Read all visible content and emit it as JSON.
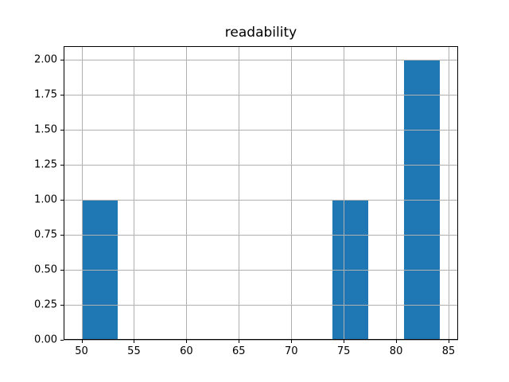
{
  "chart_data": {
    "type": "bar",
    "subtype": "histogram",
    "title": "readability",
    "xlabel": "",
    "ylabel": "",
    "bars": [
      {
        "x_start": 50.0,
        "x_end": 53.42,
        "height": 1
      },
      {
        "x_start": 73.94,
        "x_end": 77.36,
        "height": 1
      },
      {
        "x_start": 80.78,
        "x_end": 84.2,
        "height": 2
      }
    ],
    "bin_counts": [
      1,
      0,
      0,
      0,
      0,
      0,
      0,
      1,
      0,
      2
    ],
    "x_ticks": [
      50,
      55,
      60,
      65,
      70,
      75,
      80,
      85
    ],
    "y_ticks": [
      "0.00",
      "0.25",
      "0.50",
      "0.75",
      "1.00",
      "1.25",
      "1.50",
      "1.75",
      "2.00"
    ],
    "xlim": [
      48.29,
      85.91
    ],
    "ylim": [
      0,
      2.1
    ],
    "grid": true,
    "legend_position": "none",
    "bar_color": "#1f77b4",
    "grid_color": "#b0b0b0",
    "axis_color": "#000000",
    "background_color": "#ffffff"
  }
}
